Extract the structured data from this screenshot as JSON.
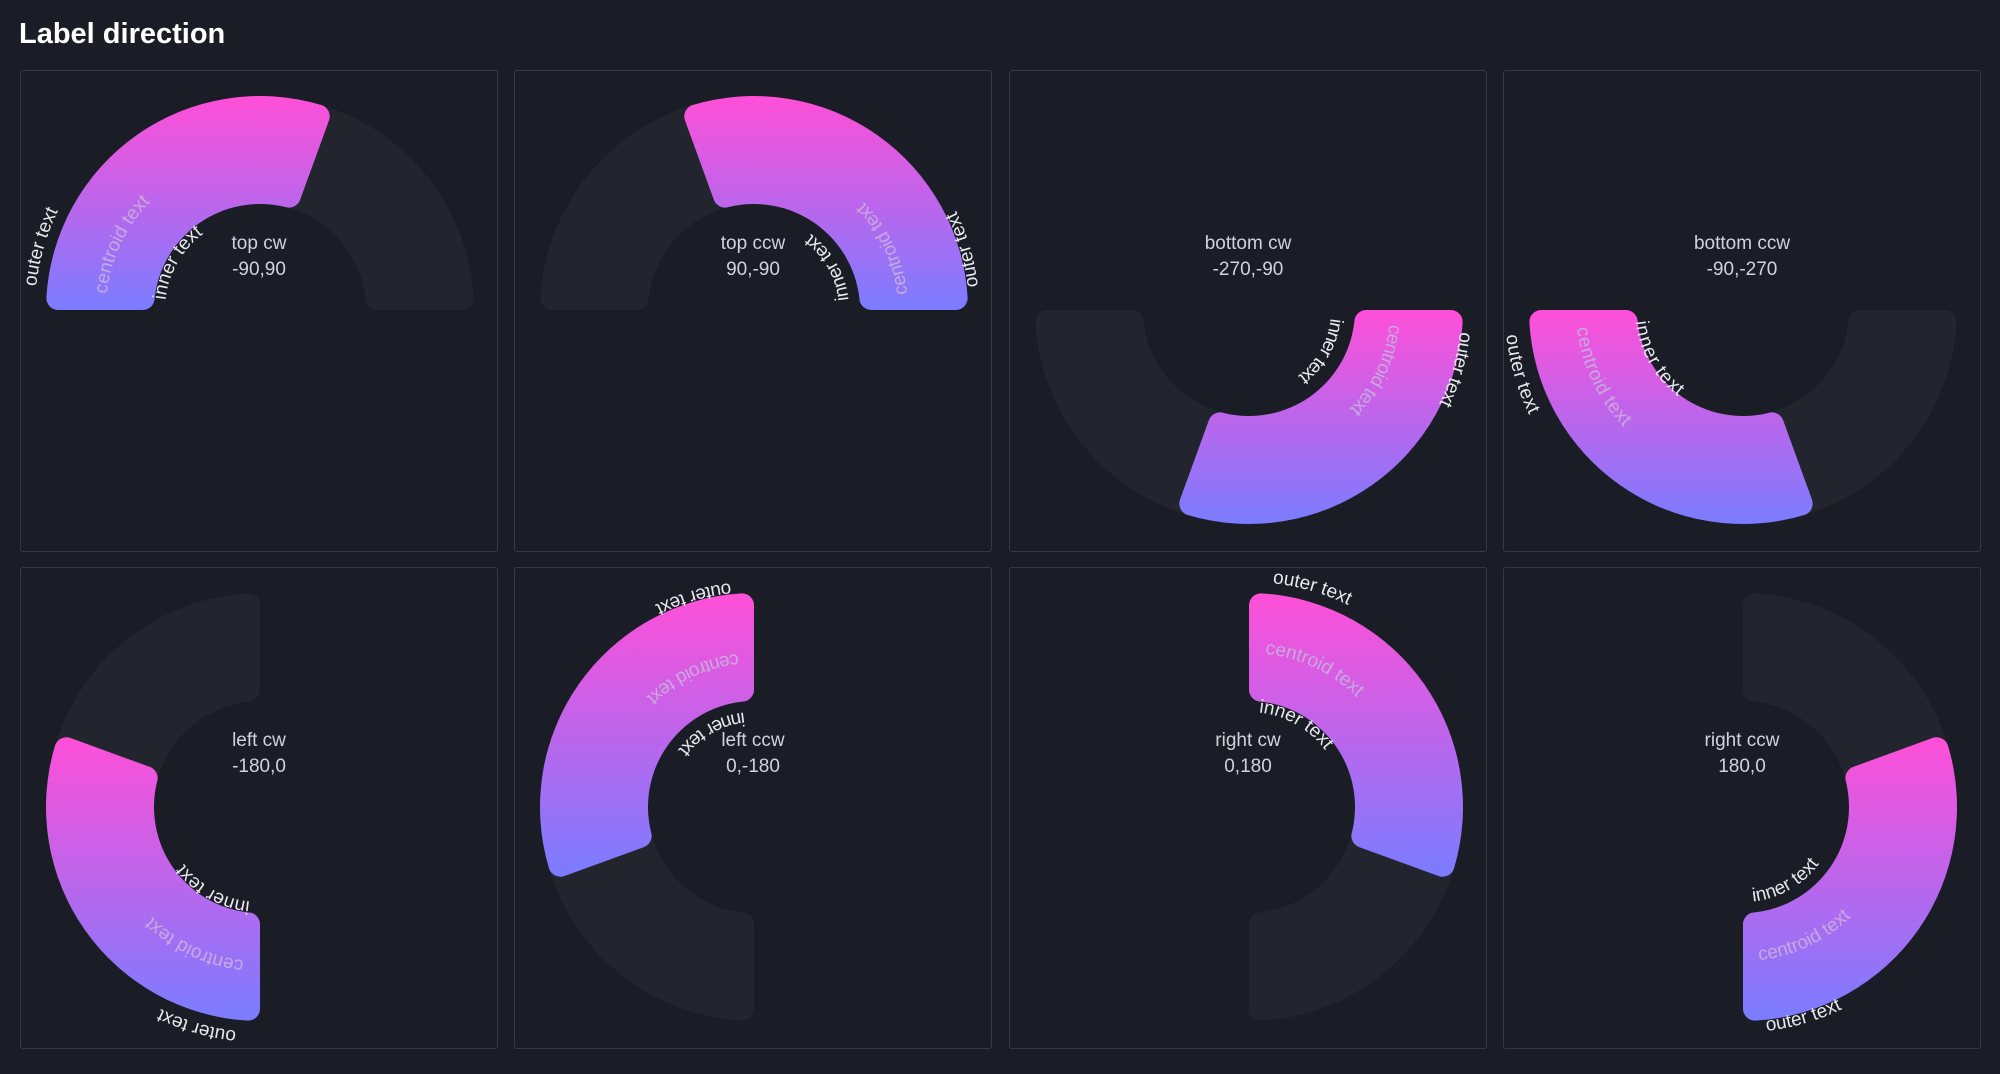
{
  "title": "Label direction",
  "colors": {
    "background": "#1a1d25",
    "panel_border": "#353944",
    "track": "#22252d",
    "gradient_top": "#ff4fd8",
    "gradient_bottom": "#7a7cff",
    "label": "#e6e8ec",
    "centroid_label": "#c8a8de"
  },
  "labels": {
    "outer": "outer text",
    "centroid": "centroid text",
    "inner": "inner text"
  },
  "panels": [
    {
      "title": "top cw",
      "range": "-90,90",
      "start": -90,
      "end": 90,
      "arc": [
        -90,
        20
      ]
    },
    {
      "title": "top ccw",
      "range": "90,-90",
      "start": 90,
      "end": -90,
      "arc": [
        -20,
        90
      ]
    },
    {
      "title": "bottom cw",
      "range": "-270,-90",
      "start": -270,
      "end": -90,
      "arc": [
        90,
        200
      ]
    },
    {
      "title": "bottom ccw",
      "range": "-90,-270",
      "start": -90,
      "end": -270,
      "arc": [
        160,
        270
      ]
    },
    {
      "title": "left cw",
      "range": "-180,0",
      "start": -180,
      "end": 0,
      "arc": [
        180,
        290
      ]
    },
    {
      "title": "left ccw",
      "range": "0,-180",
      "start": 0,
      "end": -180,
      "arc": [
        250,
        360
      ]
    },
    {
      "title": "right cw",
      "range": "0,180",
      "start": 0,
      "end": 180,
      "arc": [
        0,
        110
      ]
    },
    {
      "title": "right ccw",
      "range": "180,0",
      "start": 180,
      "end": 0,
      "arc": [
        70,
        180
      ]
    }
  ]
}
